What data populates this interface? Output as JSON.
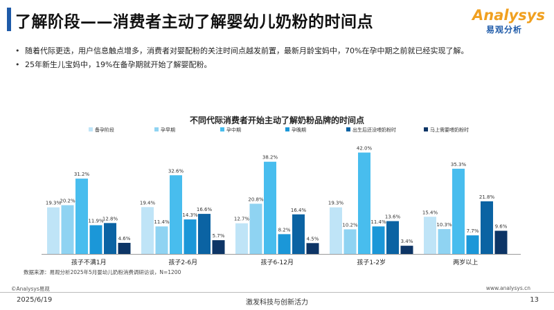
{
  "header": {
    "title": "了解阶段——消费者主动了解婴幼儿奶粉的时间点",
    "logo_brand": "Analysys",
    "logo_cn": "易观分析"
  },
  "bullets": [
    "随着代际更迭，用户信息触点增多，消费者对婴配粉的关注时间点越发前置，最新月龄宝妈中，70%在孕中期之前就已经实现了解。",
    "25年新生儿宝妈中，19%在备孕期就开始了解婴配粉。"
  ],
  "chart_data": {
    "type": "bar",
    "title": "不同代际消费者开始主动了解奶粉品牌的时间点",
    "categories": [
      "孩子不满1月",
      "孩子2-6月",
      "孩子6-12月",
      "孩子1-2岁",
      "两岁以上"
    ],
    "series": [
      {
        "name": "备孕阶段",
        "color": "#bfe4f7",
        "values": [
          19.3,
          19.4,
          12.7,
          19.3,
          15.4
        ],
        "labels": [
          "19.3%",
          "19.4%",
          "12.7%",
          "19.3%",
          "15.4%"
        ]
      },
      {
        "name": "孕早期",
        "color": "#8fd3f2",
        "values": [
          20.2,
          11.4,
          20.8,
          10.2,
          10.3
        ],
        "labels": [
          "20.2%",
          "11.4%",
          "20.8%",
          "10.2%",
          "10.3%"
        ]
      },
      {
        "name": "孕中期",
        "color": "#48bdee",
        "values": [
          31.2,
          32.6,
          38.2,
          42.0,
          35.3
        ],
        "labels": [
          "31.2%",
          "32.6%",
          "38.2%",
          "42.0%",
          "35.3%"
        ]
      },
      {
        "name": "孕晚期",
        "color": "#1b97d8",
        "values": [
          11.9,
          14.3,
          8.2,
          11.4,
          7.7
        ],
        "labels": [
          "11.9%",
          "14.3%",
          "8.2%",
          "11.4%",
          "7.7%"
        ]
      },
      {
        "name": "出生后还没喂奶粉时",
        "color": "#0b63a3",
        "values": [
          12.8,
          16.6,
          16.4,
          13.6,
          21.8
        ],
        "labels": [
          "12.8%",
          "16.6%",
          "16.4%",
          "13.6%",
          "21.8%"
        ]
      },
      {
        "name": "马上需要喂奶粉时",
        "color": "#0d3566",
        "values": [
          4.6,
          5.7,
          4.5,
          3.4,
          9.6
        ],
        "labels": [
          "4.6%",
          "5.7%",
          "4.5%",
          "3.4%",
          "9.6%"
        ]
      }
    ],
    "ylim": [
      0,
      45
    ],
    "legend": "top",
    "grid": false
  },
  "source": "数据来源：易观分析2025年5月婴幼儿奶粉消费调研访谈，N=1200",
  "footer": {
    "copyright": "©Analysys易观",
    "website": "www.analysys.cn",
    "date": "2025/6/19",
    "slogan": "激发科技与创新活力",
    "page": "13"
  }
}
